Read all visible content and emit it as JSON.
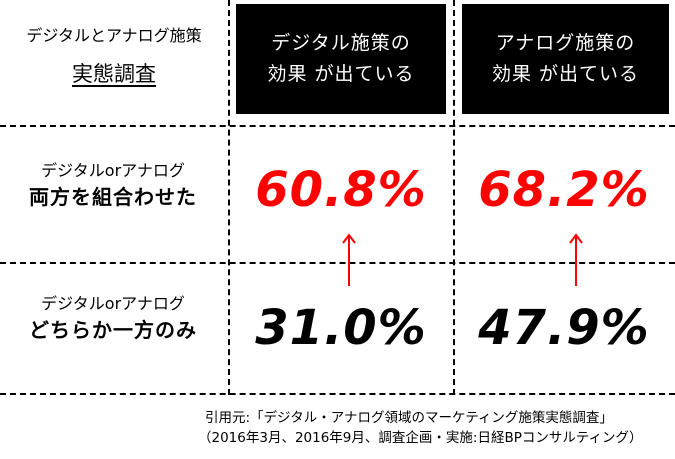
{
  "corner": {
    "subtitle": "デジタルとアナログ施策",
    "title": "実態調査"
  },
  "columns": [
    {
      "line1": "デジタル施策の",
      "line2": "効果 が出ている"
    },
    {
      "line1": "アナログ施策の",
      "line2": "効果 が出ている"
    }
  ],
  "rows": [
    {
      "line1": "デジタルorアナログ",
      "line2": "両方を組合わせた",
      "values": [
        "60.8%",
        "68.2%"
      ]
    },
    {
      "line1": "デジタルorアナログ",
      "line2": "どちらか一方のみ",
      "values": [
        "31.0%",
        "47.9%"
      ]
    }
  ],
  "colors": {
    "highlight": "#ff0000",
    "header_bg": "#000000",
    "text": "#000000"
  },
  "footer": {
    "line1": "引用元:「デジタル・アナログ領域のマーケティング施策実態調査」",
    "line2": "（2016年3月、2016年9月、調査企画・実施:日経BPコンサルティング）"
  }
}
